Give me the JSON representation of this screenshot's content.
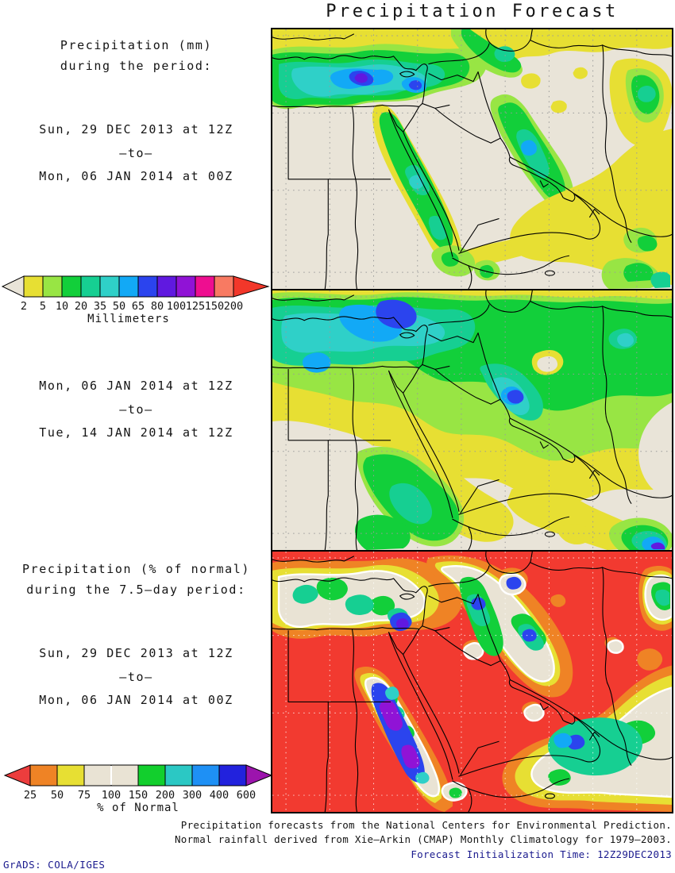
{
  "title": "Precipitation Forecast",
  "mm_section": {
    "heading_line1": "Precipitation (mm)",
    "heading_line2": "during the period:",
    "period1_start": "Sun, 29 DEC 2013 at 12Z",
    "period1_sep": "–to–",
    "period1_end": "Mon, 06 JAN 2014 at 00Z",
    "period2_start": "Mon, 06 JAN 2014 at 12Z",
    "period2_sep": "–to–",
    "period2_end": "Tue, 14 JAN 2014 at 12Z"
  },
  "pct_section": {
    "heading_line1": "Precipitation (% of normal)",
    "heading_line2": "during the 7.5–day period:",
    "period_start": "Sun, 29 DEC 2013 at 12Z",
    "period_sep": "–to–",
    "period_end": "Mon, 06 JAN 2014 at 00Z"
  },
  "colorbar_mm": {
    "unit_label": "Millimeters",
    "tick_labels": [
      "2",
      "5",
      "10",
      "20",
      "35",
      "50",
      "65",
      "80",
      "100",
      "125",
      "150",
      "200"
    ],
    "segment_colors": [
      "#e7df33",
      "#98e544",
      "#12cf3a",
      "#16cf92",
      "#2fd0c8",
      "#12a9f6",
      "#2b44ee",
      "#6019e0",
      "#9013d6",
      "#ee0e90",
      "#f87a62"
    ],
    "left_arrow_color": "#e9e4d8",
    "right_arrow_color": "#f2372a"
  },
  "colorbar_pct": {
    "unit_label": "% of Normal",
    "tick_labels": [
      "25",
      "50",
      "75",
      "100",
      "150",
      "200",
      "300",
      "400",
      "600"
    ],
    "segment_colors": [
      "#ef8325",
      "#e7df33",
      "#e9e3d4",
      "#e9e3d4",
      "#12cf2d",
      "#2bc8c4",
      "#1e90f5",
      "#2222dd"
    ],
    "left_arrow_color": "#ec3d3d",
    "right_arrow_color": "#9c14ad",
    "white_divider_at_tick_index": 3
  },
  "footer": {
    "caption_line1": "Precipitation forecasts from the National Centers for Environmental Prediction.",
    "caption_line2": "Normal rainfall derived from Xie–Arkin (CMAP) Monthly Climatology for 1979–2003.",
    "caption_line3": "Forecast Initialization Time: 12Z29DEC2013",
    "credit": "GrADS: COLA/IGES"
  },
  "chart_data": [
    {
      "type": "heatmap",
      "subtype": "geographic-precipitation-map",
      "title": "Precipitation (mm): Sun 29 DEC 2013 12Z to Mon 06 JAN 2014 00Z",
      "region": "Middle East / Northeast Africa",
      "scale_unit": "Millimeters",
      "scale_levels": [
        2,
        5,
        10,
        20,
        35,
        50,
        65,
        80,
        100,
        125,
        150,
        200
      ],
      "legend_position": "left"
    },
    {
      "type": "heatmap",
      "subtype": "geographic-precipitation-map",
      "title": "Precipitation (mm): Mon 06 JAN 2014 12Z to Tue 14 JAN 2014 12Z",
      "region": "Middle East / Northeast Africa",
      "scale_unit": "Millimeters",
      "scale_levels": [
        2,
        5,
        10,
        20,
        35,
        50,
        65,
        80,
        100,
        125,
        150,
        200
      ],
      "legend_position": "left"
    },
    {
      "type": "heatmap",
      "subtype": "geographic-precipitation-map",
      "title": "Precipitation (% of normal): Sun 29 DEC 2013 12Z to Mon 06 JAN 2014 00Z",
      "region": "Middle East / Northeast Africa",
      "scale_unit": "% of Normal",
      "scale_levels": [
        25,
        50,
        75,
        100,
        150,
        200,
        300,
        400,
        600
      ],
      "legend_position": "left"
    }
  ]
}
